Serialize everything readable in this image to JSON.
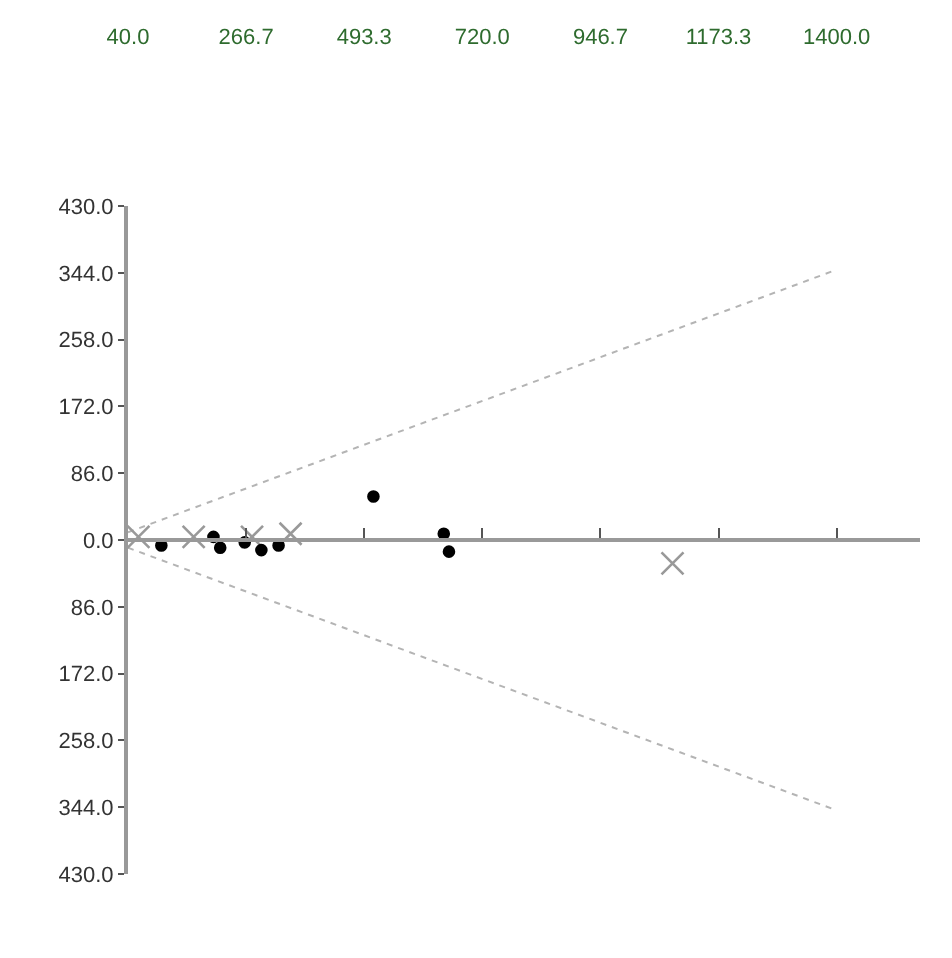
{
  "chart_data": {
    "type": "scatter",
    "xlim": [
      40,
      1560
    ],
    "xticks": [
      {
        "value": 40,
        "label": "40.0"
      },
      {
        "value": 266.7,
        "label": "266.7"
      },
      {
        "value": 493.3,
        "label": "493.3"
      },
      {
        "value": 720,
        "label": "720.0"
      },
      {
        "value": 946.7,
        "label": "946.7"
      },
      {
        "value": 1173.3,
        "label": "1173.3"
      },
      {
        "value": 1400,
        "label": "1400.0"
      }
    ],
    "ylim": [
      -430,
      430
    ],
    "yticks": [
      {
        "value": 430,
        "label": "430.0"
      },
      {
        "value": 344,
        "label": "344.0"
      },
      {
        "value": 258,
        "label": "258.0"
      },
      {
        "value": 172,
        "label": "172.0"
      },
      {
        "value": 86,
        "label": "86.0"
      },
      {
        "value": 0,
        "label": "0.0"
      },
      {
        "value": -86,
        "label": "86.0"
      },
      {
        "value": -172,
        "label": "172.0"
      },
      {
        "value": -258,
        "label": "258.0"
      },
      {
        "value": -344,
        "label": "344.0"
      },
      {
        "value": -430,
        "label": "430.0"
      }
    ],
    "series": [
      {
        "type": "line",
        "color": "#b4b4b4",
        "line_style": "dotted",
        "marker": "none",
        "x": [
          40,
          1400
        ],
        "values": [
          10,
          348
        ]
      },
      {
        "type": "line",
        "color": "#b4b4b4",
        "line_style": "dotted",
        "marker": "none",
        "x": [
          40,
          1400
        ],
        "values": [
          -10,
          -348
        ]
      },
      {
        "color": "#999999",
        "marker": "cross",
        "x": [
          60,
          166,
          278,
          352,
          1085
        ],
        "values": [
          4,
          4,
          4,
          8,
          -30
        ]
      },
      {
        "color": "#000000",
        "marker": "circle",
        "x": [
          104,
          204,
          217,
          264,
          296,
          329,
          511,
          646,
          656
        ],
        "values": [
          -7,
          4,
          -10,
          -3,
          -13,
          -7,
          56,
          8,
          -15
        ]
      }
    ]
  }
}
